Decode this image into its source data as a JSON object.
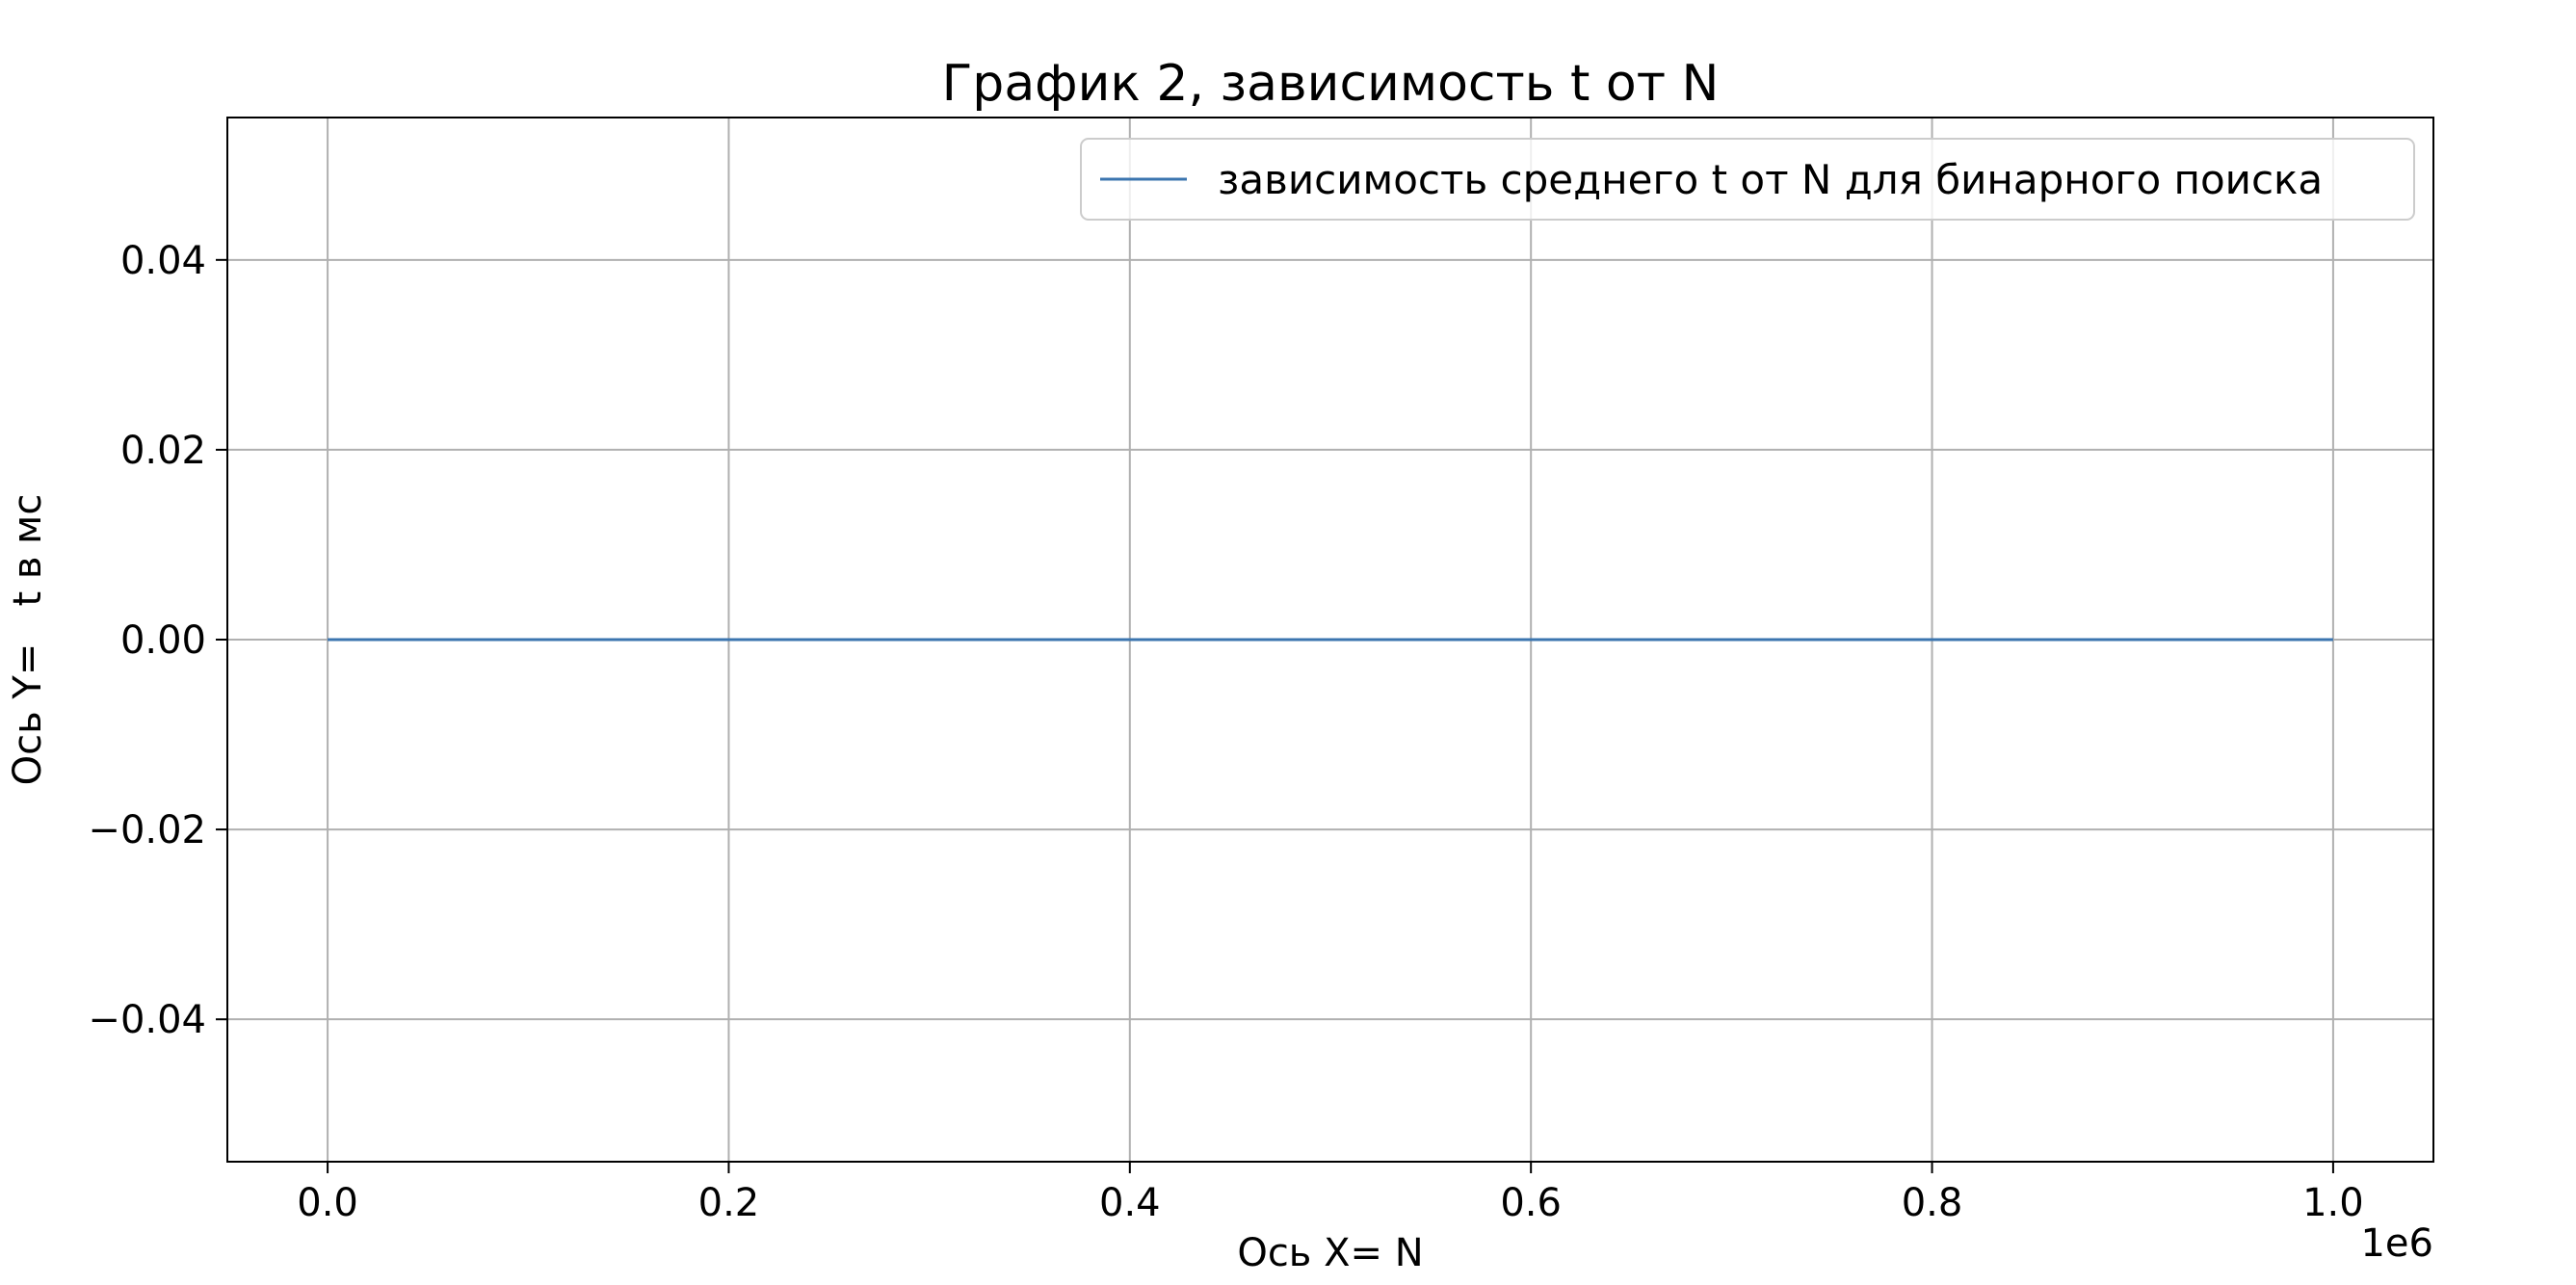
{
  "chart_data": {
    "type": "line",
    "title": "График 2, зависимость t от N",
    "xlabel": "Ось X= N",
    "ylabel": "Ось Y=   t в мс",
    "x_offset_text": "1e6",
    "xlim": [
      -50000,
      1050000
    ],
    "ylim": [
      -0.055,
      0.055
    ],
    "x_ticks": [
      0,
      200000,
      400000,
      600000,
      800000,
      1000000
    ],
    "x_tick_labels": [
      "0.0",
      "0.2",
      "0.4",
      "0.6",
      "0.8",
      "1.0"
    ],
    "y_ticks": [
      0.04,
      0.02,
      0.0,
      -0.02,
      -0.04
    ],
    "y_tick_labels": [
      "0.04",
      "0.02",
      "0.00",
      "−0.02",
      "−0.04"
    ],
    "grid": true,
    "legend_position": "top-right",
    "series": [
      {
        "name": "зависимость среднего t от N для бинарного поиска",
        "color": "#3b75af",
        "x": [
          0,
          100000,
          200000,
          300000,
          400000,
          500000,
          600000,
          700000,
          800000,
          900000,
          1000000
        ],
        "y": [
          0,
          0,
          0,
          0,
          0,
          0,
          0,
          0,
          0,
          0,
          0
        ]
      }
    ]
  }
}
